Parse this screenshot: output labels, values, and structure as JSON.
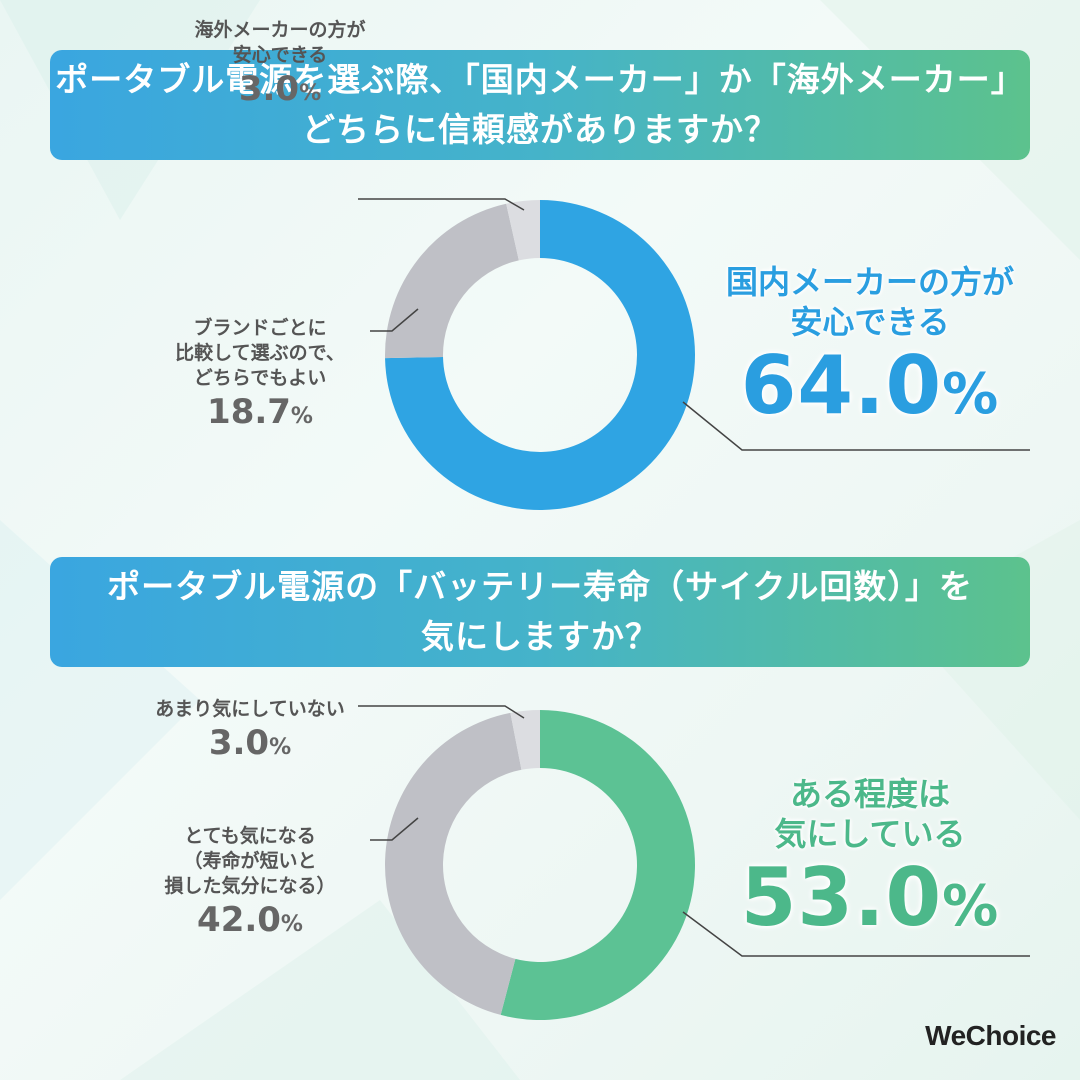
{
  "brand": {
    "logo_text": "WeChoice"
  },
  "questions": [
    {
      "title_lines": [
        "ポータブル電源を選ぶ際、「国内メーカー」か「海外メーカー」",
        "どちらに信頼感がありますか？"
      ]
    },
    {
      "title_lines": [
        "ポータブル電源の「バッテリー寿命（サイクル回数）」を",
        "気にしますか？"
      ]
    }
  ],
  "chart_data": [
    {
      "type": "pie",
      "series": [
        {
          "label_lines": [
            "国内メーカーの方が",
            "安心できる"
          ],
          "value": 64.0,
          "value_text": "64.0",
          "color": "#2fa4e3"
        },
        {
          "label_lines": [
            "ブランドごとに",
            "比較して選ぶので、",
            "どちらでもよい"
          ],
          "value": 18.7,
          "value_text": "18.7",
          "color": "#bfc0c6"
        },
        {
          "label_lines": [
            "海外メーカーの方が",
            "安心できる"
          ],
          "value": 3.0,
          "value_text": "3.0",
          "color": "#dcdde1"
        }
      ],
      "unit": "%"
    },
    {
      "type": "pie",
      "series": [
        {
          "label_lines": [
            "ある程度は",
            "気にしている"
          ],
          "value": 53.0,
          "value_text": "53.0",
          "color": "#5cc294"
        },
        {
          "label_lines": [
            "とても気になる",
            "（寿命が短いと",
            "損した気分になる）"
          ],
          "value": 42.0,
          "value_text": "42.0",
          "color": "#bfc0c6"
        },
        {
          "label_lines": [
            "あまり気にしていない"
          ],
          "value": 3.0,
          "value_text": "3.0",
          "color": "#dcdde1"
        }
      ],
      "unit": "%"
    }
  ]
}
